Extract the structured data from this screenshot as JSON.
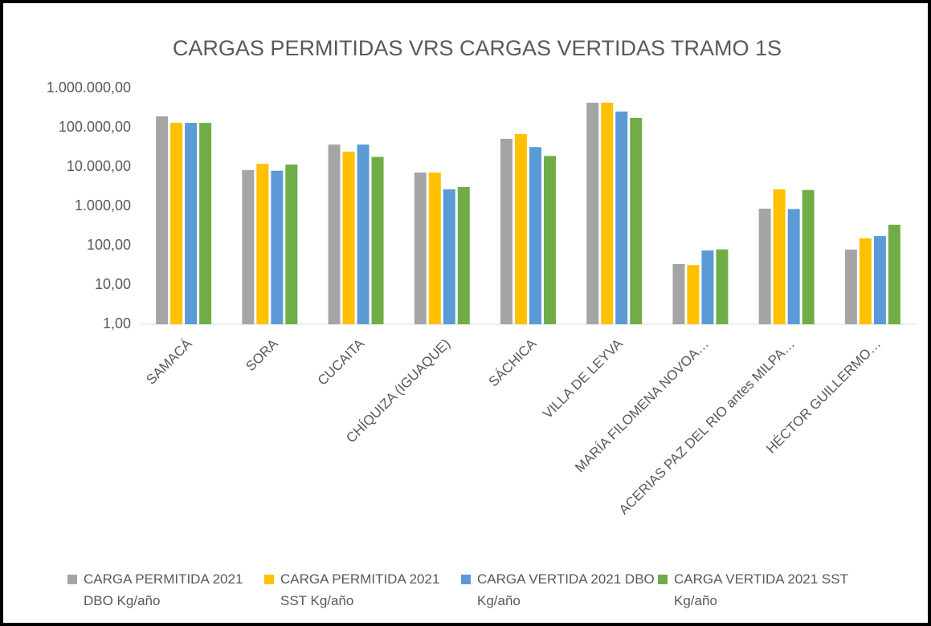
{
  "chart_data": {
    "type": "bar",
    "title": "CARGAS PERMITIDAS VRS CARGAS VERTIDAS TRAMO 1S",
    "log_scale": true,
    "grid": false,
    "legend": "bottom",
    "categories": [
      "SAMACÁ",
      "SORA",
      "CUCAITA",
      "CHÍQUIZA (IGUAQUE)",
      "SÁCHICA",
      "VILLA DE LEYVA",
      "MARÍA FILOMENA NOVOA…",
      "ACERIAS PAZ DEL RIO antes MILPA…",
      "HÉCTOR GUILLERMO…"
    ],
    "series": [
      {
        "name": "CARGA PERMITIDA 2021 DBO Kg/año",
        "color": "#a5a5a5",
        "values": [
          193000,
          8300,
          37000,
          7200,
          52000,
          430000,
          34,
          870,
          79
        ]
      },
      {
        "name": "CARGA PERMITIDA 2021 SST Kg/año",
        "color": "#ffc000",
        "values": [
          132000,
          12000,
          24500,
          7200,
          69000,
          430000,
          32,
          2700,
          153
        ]
      },
      {
        "name": "CARGA VERTIDA 2021 DBO Kg/año",
        "color": "#5b9bd5",
        "values": [
          132000,
          8000,
          37000,
          2700,
          32000,
          256000,
          75,
          850,
          175
        ]
      },
      {
        "name": "CARGA VERTIDA 2021 SST Kg/año",
        "color": "#70ad47",
        "values": [
          132000,
          11500,
          18000,
          3100,
          19000,
          176000,
          80,
          2600,
          340
        ]
      }
    ],
    "ylim": [
      1,
      1000000
    ],
    "yticks": [
      {
        "value": 1,
        "label": "1,00"
      },
      {
        "value": 10,
        "label": "10,00"
      },
      {
        "value": 100,
        "label": "100,00"
      },
      {
        "value": 1000,
        "label": "1.000,00"
      },
      {
        "value": 10000,
        "label": "10.000,00"
      },
      {
        "value": 100000,
        "label": "100.000,00"
      },
      {
        "value": 1000000,
        "label": "1.000.000,00"
      }
    ]
  }
}
